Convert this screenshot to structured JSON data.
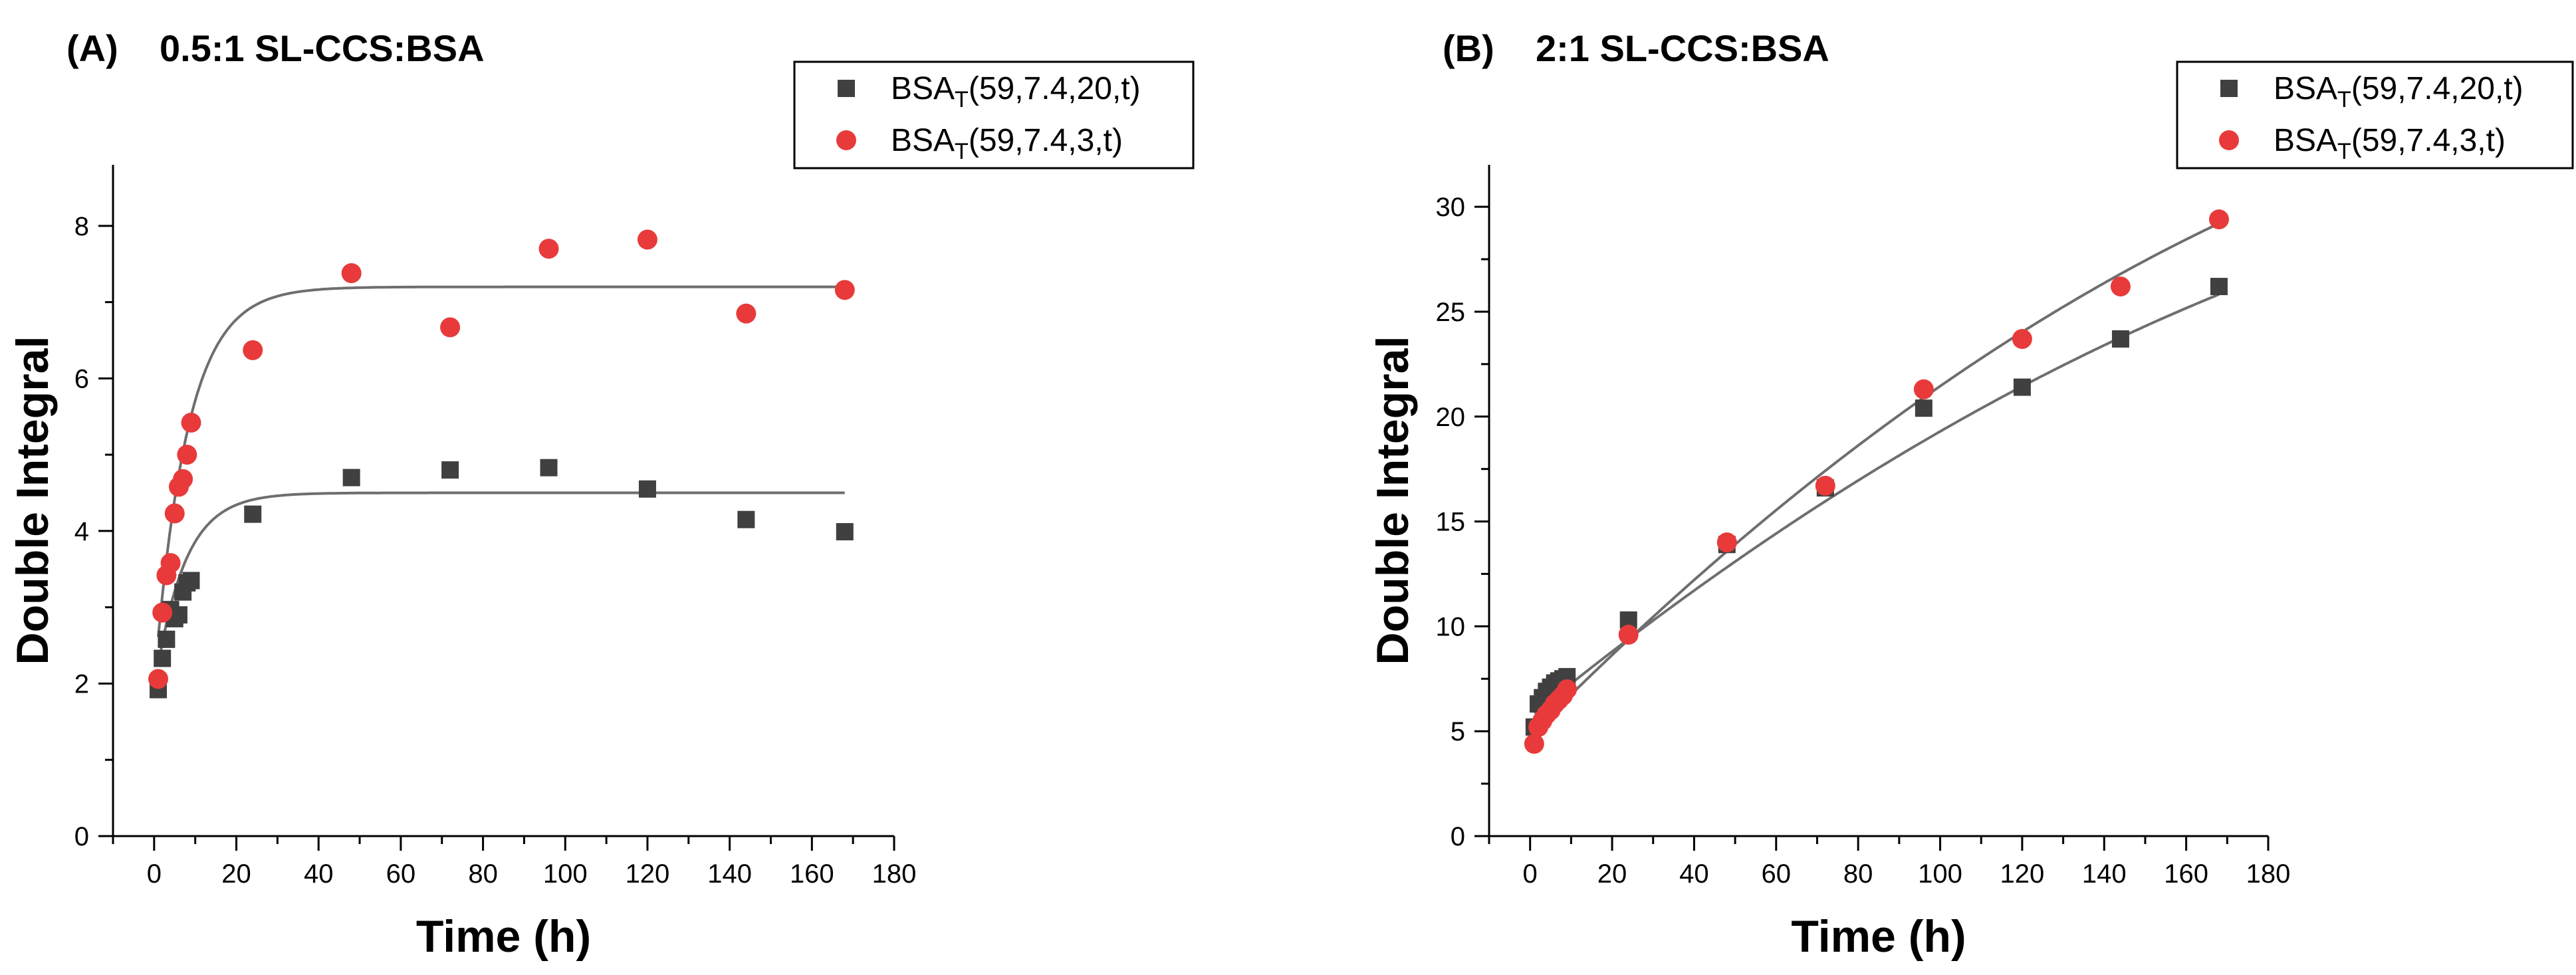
{
  "chart_data": [
    {
      "type": "scatter",
      "panel_label": "(A)",
      "title": "0.5:1 SL-CCS:BSA",
      "xlabel": "Time (h)",
      "ylabel": "Double Integral",
      "xlim": [
        -10,
        180
      ],
      "ylim": [
        0,
        8.8
      ],
      "xticks": [
        0,
        20,
        40,
        60,
        80,
        100,
        120,
        140,
        160,
        180
      ],
      "yticks": [
        0,
        2,
        4,
        6,
        8
      ],
      "legend_position": "top-right",
      "series": [
        {
          "name_main": "BSA",
          "name_sub": "T",
          "name_tail": "(59,7.4,20,t)",
          "marker": "square",
          "color": "#404040",
          "x": [
            1,
            2,
            3,
            4,
            5,
            6,
            7,
            8,
            9,
            24,
            48,
            72,
            96,
            120,
            144,
            168
          ],
          "y": [
            1.92,
            2.33,
            2.58,
            2.97,
            2.85,
            2.9,
            3.2,
            3.32,
            3.35,
            4.22,
            4.7,
            4.8,
            4.83,
            4.55,
            4.15,
            3.99
          ],
          "fit": {
            "model": "exp_rise",
            "y0": 1.9,
            "plateau": 4.5,
            "k": 0.14
          }
        },
        {
          "name_main": "BSA",
          "name_sub": "T",
          "name_tail": "(59,7.4,3,t)",
          "marker": "circle",
          "color": "#e83a3a",
          "x": [
            1,
            2,
            3,
            4,
            5,
            6,
            7,
            8,
            9,
            24,
            48,
            72,
            96,
            120,
            144,
            168
          ],
          "y": [
            2.06,
            2.93,
            3.42,
            3.58,
            4.23,
            4.58,
            4.68,
            5.0,
            5.42,
            6.37,
            7.38,
            6.67,
            7.7,
            7.82,
            6.85,
            7.16
          ],
          "fit": {
            "model": "exp_rise",
            "y0": 2.0,
            "plateau": 7.2,
            "k": 0.125
          }
        }
      ]
    },
    {
      "type": "scatter",
      "panel_label": "(B)",
      "title": "2:1 SL-CCS:BSA",
      "xlabel": "Time (h)",
      "ylabel": "Double Integral",
      "xlim": [
        -10,
        180
      ],
      "ylim": [
        0,
        32
      ],
      "xticks": [
        0,
        20,
        40,
        60,
        80,
        100,
        120,
        140,
        160,
        180
      ],
      "yticks": [
        0,
        5,
        10,
        15,
        20,
        25,
        30
      ],
      "legend_position": "top-right",
      "series": [
        {
          "name_main": "BSA",
          "name_sub": "T",
          "name_tail": "(59,7.4,20,t)",
          "marker": "square",
          "color": "#404040",
          "x": [
            1,
            2,
            3,
            4,
            5,
            6,
            7,
            8,
            9,
            24,
            48,
            72,
            96,
            120,
            144,
            168
          ],
          "y": [
            5.2,
            6.3,
            6.6,
            6.9,
            7.1,
            7.3,
            7.4,
            7.5,
            7.6,
            10.3,
            13.9,
            16.6,
            20.4,
            21.4,
            23.7,
            26.2
          ],
          "fit": {
            "model": "quadratic",
            "a": 5.7,
            "b": 0.1596,
            "c": -0.000237
          }
        },
        {
          "name_main": "BSA",
          "name_sub": "T",
          "name_tail": "(59,7.4,3,t)",
          "marker": "circle",
          "color": "#e83a3a",
          "x": [
            1,
            2,
            3,
            4,
            5,
            6,
            7,
            8,
            9,
            24,
            48,
            72,
            96,
            120,
            144,
            168
          ],
          "y": [
            4.4,
            5.2,
            5.5,
            5.8,
            6.0,
            6.3,
            6.5,
            6.7,
            7.0,
            9.6,
            14.0,
            16.7,
            21.3,
            23.7,
            26.2,
            29.4
          ],
          "fit": {
            "model": "quadratic",
            "a": 4.8,
            "b": 0.1977,
            "c": -0.000312
          }
        }
      ]
    }
  ]
}
